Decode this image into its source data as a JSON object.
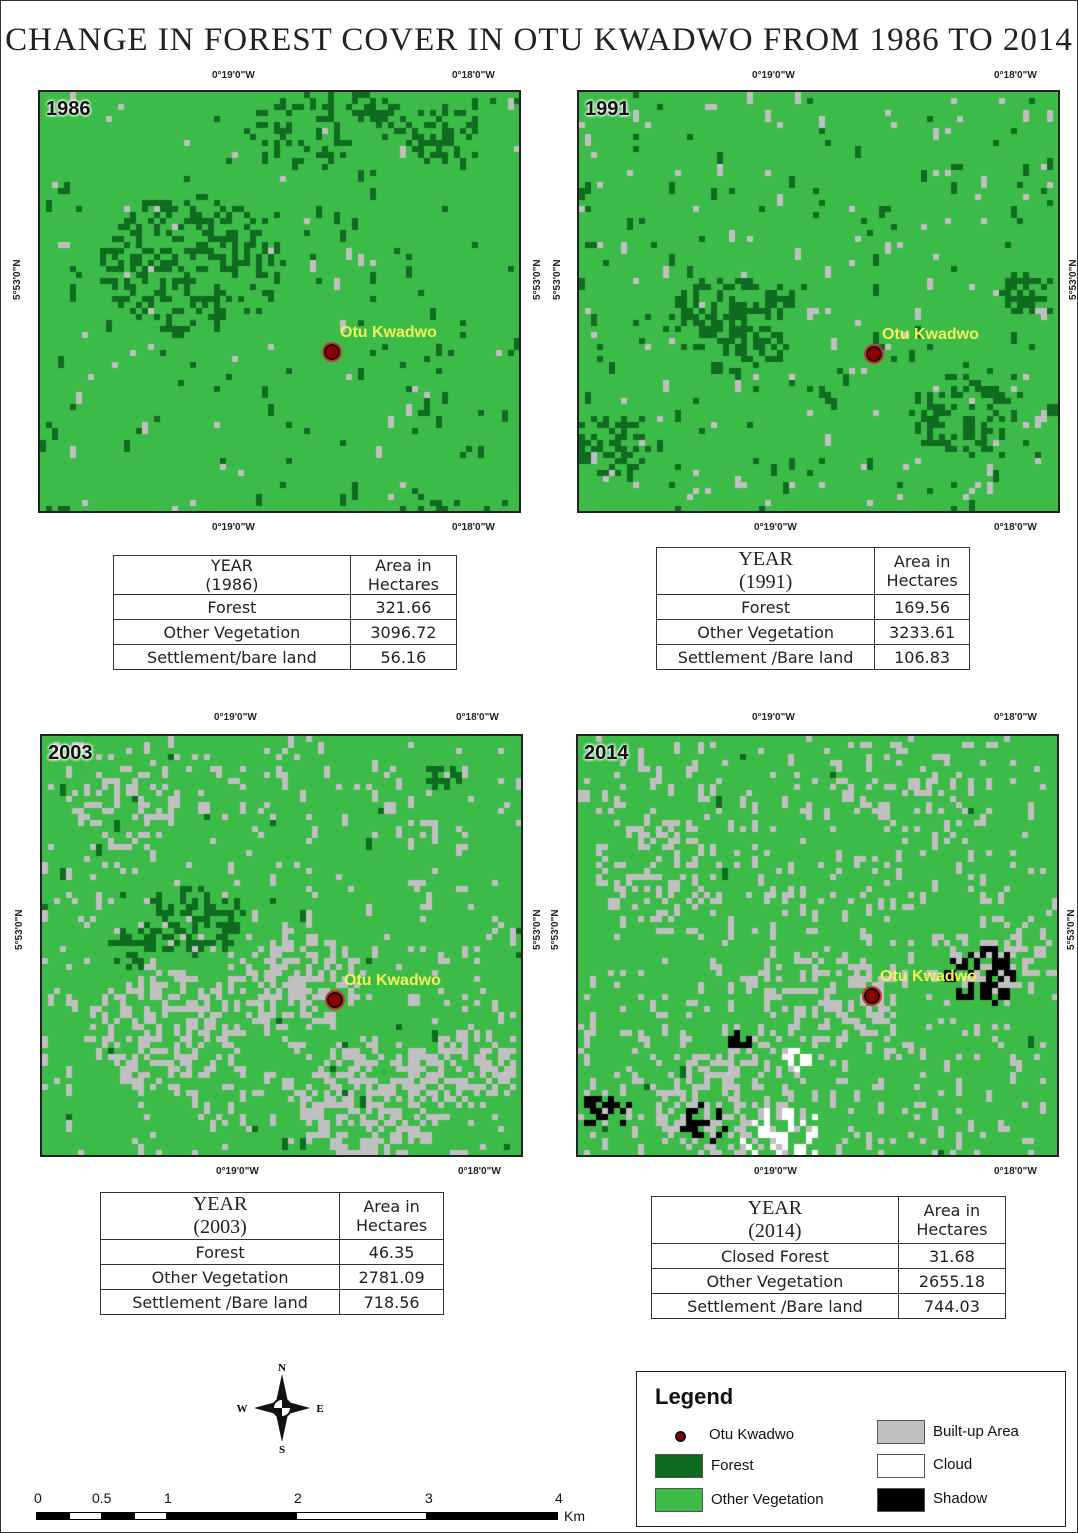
{
  "title": "CHANGE IN FOREST COVER IN OTU KWADWO FROM 1986 TO 2014",
  "place_name": "Otu Kwadwo",
  "ticks": {
    "lon_left": "0°19'0\"W",
    "lon_right": "0°18'0\"W",
    "lat": "5°53'0\"N"
  },
  "colors": {
    "forest": "#0f6b1f",
    "other_vegetation": "#3dbb48",
    "built_up": "#c0c0c0",
    "cloud": "#ffffff",
    "shadow": "#000000",
    "place_label": "#f2f25a"
  },
  "panels": [
    {
      "year": "1986",
      "table": {
        "header_year": "YEAR",
        "header_year_val": "(1986)",
        "header_area_1": "Area in",
        "header_area_2": "Hectares",
        "rows": [
          {
            "label": "Forest",
            "value": "321.66"
          },
          {
            "label": "Other Vegetation",
            "value": "3096.72"
          },
          {
            "label": "Settlement/bare land",
            "value": "56.16"
          }
        ]
      }
    },
    {
      "year": "1991",
      "table": {
        "header_year": "YEAR",
        "header_year_val": "(1991)",
        "header_area_1": "Area in",
        "header_area_2": "Hectares",
        "rows": [
          {
            "label": "Forest",
            "value": "169.56"
          },
          {
            "label": "Other Vegetation",
            "value": "3233.61"
          },
          {
            "label": "Settlement /Bare land",
            "value": "106.83"
          }
        ]
      }
    },
    {
      "year": "2003",
      "table": {
        "header_year": "YEAR",
        "header_year_val": "(2003)",
        "header_area_1": "Area in",
        "header_area_2": "Hectares",
        "rows": [
          {
            "label": "Forest",
            "value": "46.35"
          },
          {
            "label": "Other Vegetation",
            "value": "2781.09"
          },
          {
            "label": "Settlement /Bare land",
            "value": "718.56"
          }
        ]
      }
    },
    {
      "year": "2014",
      "table": {
        "header_year": "YEAR",
        "header_year_val": "(2014)",
        "header_area_1": "Area in",
        "header_area_2": "Hectares",
        "rows": [
          {
            "label": "Closed Forest",
            "value": "31.68"
          },
          {
            "label": "Other Vegetation",
            "value": "2655.18"
          },
          {
            "label": "Settlement /Bare land",
            "value": "744.03"
          }
        ]
      }
    }
  ],
  "legend": {
    "title": "Legend",
    "items": {
      "place": "Otu Kwadwo",
      "forest": "Forest",
      "other_vegetation": "Other Vegetation",
      "built_up": "Built-up Area",
      "cloud": "Cloud",
      "shadow": "Shadow"
    }
  },
  "compass": {
    "n": "N",
    "s": "S",
    "e": "E",
    "w": "W"
  },
  "scale": {
    "labels": [
      "0",
      "0.5",
      "1",
      "2",
      "3",
      "4"
    ],
    "unit": "Km"
  }
}
